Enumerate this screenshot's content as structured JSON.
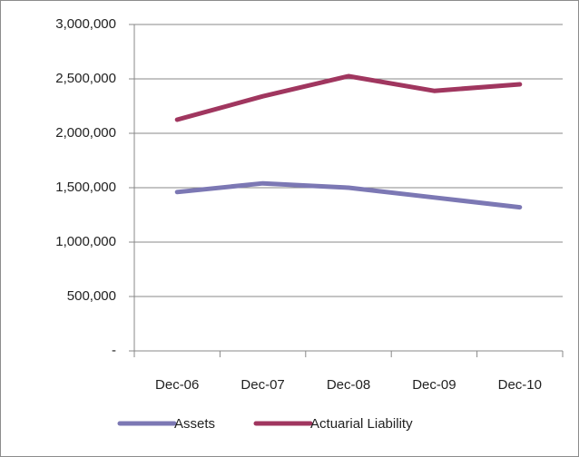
{
  "chart_data": {
    "type": "line",
    "categories": [
      "Dec-06",
      "Dec-07",
      "Dec-08",
      "Dec-09",
      "Dec-10"
    ],
    "series": [
      {
        "name": "Assets",
        "color": "#7c78b4",
        "values": [
          1460000,
          1540000,
          1500000,
          1410000,
          1320000
        ]
      },
      {
        "name": "Actuarial Liability",
        "color": "#a0365f",
        "values": [
          2125000,
          2340000,
          2525000,
          2390000,
          2450000
        ]
      }
    ],
    "ylim": [
      0,
      3000000
    ],
    "yticks": [
      {
        "value": 0,
        "label": "-"
      },
      {
        "value": 500000,
        "label": "500,000"
      },
      {
        "value": 1000000,
        "label": "1,000,000"
      },
      {
        "value": 1500000,
        "label": "1,500,000"
      },
      {
        "value": 2000000,
        "label": "2,000,000"
      },
      {
        "value": 2500000,
        "label": "2,500,000"
      },
      {
        "value": 3000000,
        "label": "3,000,000"
      }
    ],
    "grid": true,
    "legend": "bottom"
  }
}
